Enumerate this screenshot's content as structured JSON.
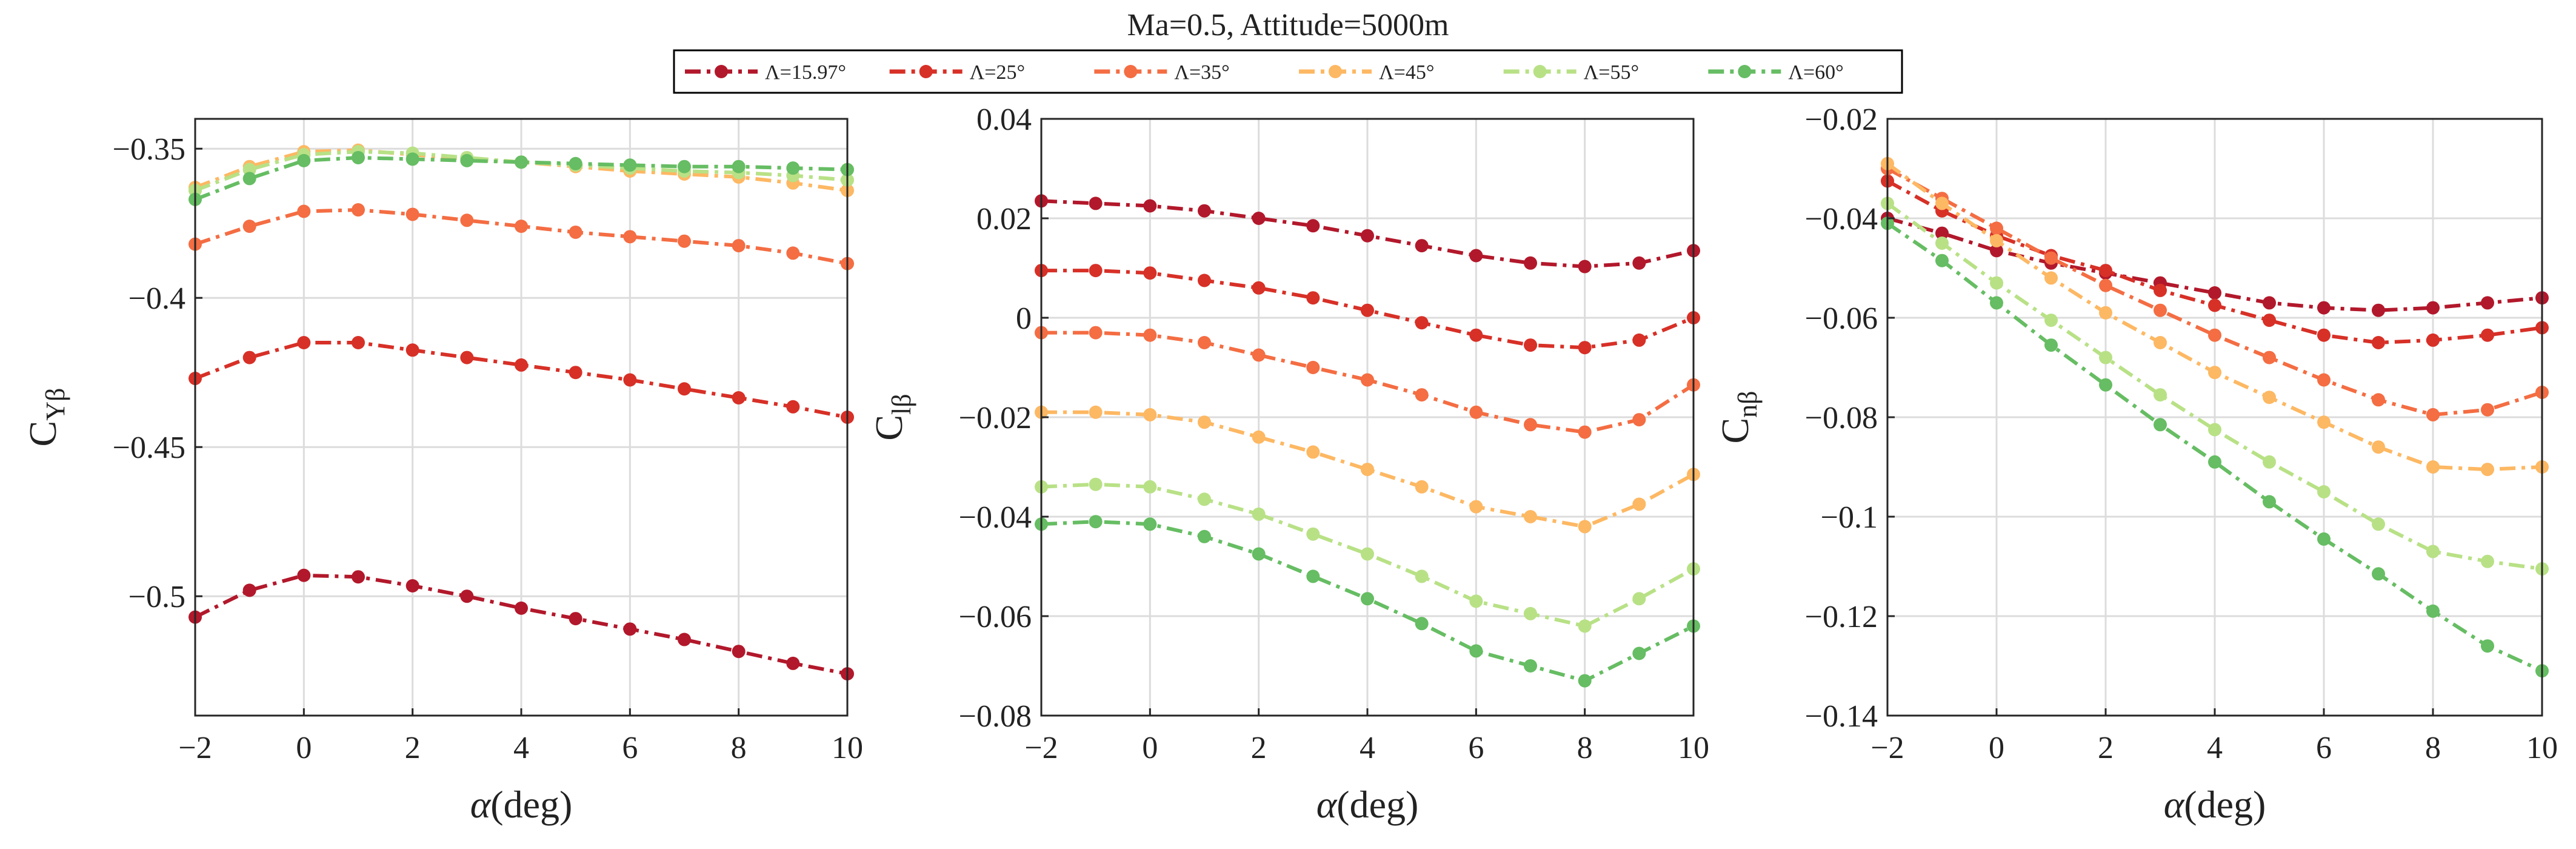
{
  "chart_data": {
    "type": "line",
    "title": "Ma=0.5, Attitude=5000m",
    "legend_position": "top",
    "series_legend": [
      {
        "name": "Λ=15.97°",
        "color": "#b2182b"
      },
      {
        "name": "Λ=25°",
        "color": "#d73027"
      },
      {
        "name": "Λ=35°",
        "color": "#f46d43"
      },
      {
        "name": "Λ=45°",
        "color": "#fdb863"
      },
      {
        "name": "Λ=55°",
        "color": "#b8e186"
      },
      {
        "name": "Λ=60°",
        "color": "#66bd63"
      }
    ],
    "x": [
      -2,
      -1,
      0,
      1,
      2,
      3,
      4,
      5,
      6,
      7,
      8,
      9,
      10
    ],
    "panels": [
      {
        "ylabel_main": "C",
        "ylabel_sub": "Yβ",
        "xlabel": "α(deg)",
        "xlim": [
          -2,
          10
        ],
        "ylim": [
          -0.54,
          -0.34
        ],
        "xticks": [
          "−2",
          "0",
          "2",
          "4",
          "6",
          "8",
          "10"
        ],
        "xtick_values": [
          -2,
          0,
          2,
          4,
          6,
          8,
          10
        ],
        "yticks": [
          "−0.5",
          "−0.45",
          "−0.4",
          "−0.35"
        ],
        "ytick_values": [
          -0.5,
          -0.45,
          -0.4,
          -0.35
        ],
        "series": [
          {
            "name": "Λ=15.97°",
            "values": [
              -0.507,
              -0.498,
              -0.493,
              -0.4935,
              -0.4965,
              -0.5,
              -0.504,
              -0.5075,
              -0.511,
              -0.5145,
              -0.5185,
              -0.5225,
              -0.526
            ]
          },
          {
            "name": "Λ=25°",
            "values": [
              -0.427,
              -0.42,
              -0.415,
              -0.415,
              -0.4175,
              -0.42,
              -0.4225,
              -0.425,
              -0.4275,
              -0.4305,
              -0.4335,
              -0.4365,
              -0.44
            ]
          },
          {
            "name": "Λ=35°",
            "values": [
              -0.382,
              -0.376,
              -0.371,
              -0.3705,
              -0.372,
              -0.374,
              -0.376,
              -0.378,
              -0.3795,
              -0.381,
              -0.3825,
              -0.385,
              -0.3885
            ]
          },
          {
            "name": "Λ=45°",
            "values": [
              -0.363,
              -0.356,
              -0.351,
              -0.3505,
              -0.352,
              -0.3535,
              -0.3545,
              -0.356,
              -0.3575,
              -0.3585,
              -0.3595,
              -0.3615,
              -0.364
            ]
          },
          {
            "name": "Λ=55°",
            "values": [
              -0.364,
              -0.357,
              -0.352,
              -0.351,
              -0.3515,
              -0.353,
              -0.3545,
              -0.3555,
              -0.3565,
              -0.3575,
              -0.358,
              -0.359,
              -0.3605
            ]
          },
          {
            "name": "Λ=60°",
            "values": [
              -0.367,
              -0.36,
              -0.354,
              -0.353,
              -0.3535,
              -0.354,
              -0.3545,
              -0.355,
              -0.3555,
              -0.356,
              -0.356,
              -0.3565,
              -0.357
            ]
          }
        ]
      },
      {
        "ylabel_main": "C",
        "ylabel_sub": "lβ",
        "xlabel": "α(deg)",
        "xlim": [
          -2,
          10
        ],
        "ylim": [
          -0.08,
          0.04
        ],
        "xticks": [
          "−2",
          "0",
          "2",
          "4",
          "6",
          "8",
          "10"
        ],
        "xtick_values": [
          -2,
          0,
          2,
          4,
          6,
          8,
          10
        ],
        "yticks": [
          "−0.08",
          "−0.06",
          "−0.04",
          "−0.02",
          "0",
          "0.02",
          "0.04"
        ],
        "ytick_values": [
          -0.08,
          -0.06,
          -0.04,
          -0.02,
          0,
          0.02,
          0.04
        ],
        "series": [
          {
            "name": "Λ=15.97°",
            "values": [
              0.0235,
              0.023,
              0.0225,
              0.0215,
              0.02,
              0.0185,
              0.0165,
              0.0145,
              0.0125,
              0.011,
              0.0103,
              0.011,
              0.0135
            ]
          },
          {
            "name": "Λ=25°",
            "values": [
              0.0095,
              0.0095,
              0.009,
              0.0075,
              0.006,
              0.004,
              0.0015,
              -0.001,
              -0.0035,
              -0.0055,
              -0.006,
              -0.0045,
              0.0
            ]
          },
          {
            "name": "Λ=35°",
            "values": [
              -0.003,
              -0.003,
              -0.0035,
              -0.005,
              -0.0075,
              -0.01,
              -0.0125,
              -0.0155,
              -0.019,
              -0.0215,
              -0.023,
              -0.0205,
              -0.0135
            ]
          },
          {
            "name": "Λ=45°",
            "values": [
              -0.019,
              -0.019,
              -0.0195,
              -0.021,
              -0.024,
              -0.027,
              -0.0305,
              -0.034,
              -0.038,
              -0.04,
              -0.042,
              -0.0375,
              -0.0315
            ]
          },
          {
            "name": "Λ=55°",
            "values": [
              -0.034,
              -0.0335,
              -0.034,
              -0.0365,
              -0.0395,
              -0.0435,
              -0.0475,
              -0.052,
              -0.057,
              -0.0595,
              -0.062,
              -0.0565,
              -0.0505
            ]
          },
          {
            "name": "Λ=60°",
            "values": [
              -0.0415,
              -0.041,
              -0.0415,
              -0.044,
              -0.0475,
              -0.052,
              -0.0565,
              -0.0615,
              -0.067,
              -0.07,
              -0.073,
              -0.0675,
              -0.062
            ]
          }
        ]
      },
      {
        "ylabel_main": "C",
        "ylabel_sub": "nβ",
        "xlabel": "α(deg)",
        "xlim": [
          -2,
          10
        ],
        "ylim": [
          -0.14,
          -0.02
        ],
        "xticks": [
          "−2",
          "0",
          "2",
          "4",
          "6",
          "8",
          "10"
        ],
        "xtick_values": [
          -2,
          0,
          2,
          4,
          6,
          8,
          10
        ],
        "yticks": [
          "−0.14",
          "−0.12",
          "−0.1",
          "−0.08",
          "−0.06",
          "−0.04",
          "−0.02"
        ],
        "ytick_values": [
          -0.14,
          -0.12,
          -0.1,
          -0.08,
          -0.06,
          -0.04,
          -0.02
        ],
        "series": [
          {
            "name": "Λ=15.97°",
            "values": [
              -0.04,
              -0.043,
              -0.0465,
              -0.049,
              -0.051,
              -0.053,
              -0.055,
              -0.057,
              -0.058,
              -0.0585,
              -0.058,
              -0.057,
              -0.056
            ]
          },
          {
            "name": "Λ=25°",
            "values": [
              -0.0325,
              -0.0385,
              -0.0435,
              -0.0475,
              -0.0505,
              -0.0545,
              -0.0575,
              -0.0605,
              -0.0635,
              -0.065,
              -0.0645,
              -0.0635,
              -0.062
            ]
          },
          {
            "name": "Λ=35°",
            "values": [
              -0.03,
              -0.036,
              -0.042,
              -0.048,
              -0.0535,
              -0.0585,
              -0.0635,
              -0.068,
              -0.0725,
              -0.0765,
              -0.0795,
              -0.0785,
              -0.075
            ]
          },
          {
            "name": "Λ=45°",
            "values": [
              -0.029,
              -0.037,
              -0.0445,
              -0.052,
              -0.059,
              -0.065,
              -0.071,
              -0.076,
              -0.081,
              -0.086,
              -0.09,
              -0.0905,
              -0.09
            ]
          },
          {
            "name": "Λ=55°",
            "values": [
              -0.037,
              -0.045,
              -0.053,
              -0.0605,
              -0.068,
              -0.0755,
              -0.0825,
              -0.089,
              -0.095,
              -0.1015,
              -0.107,
              -0.109,
              -0.1105
            ]
          },
          {
            "name": "Λ=60°",
            "values": [
              -0.041,
              -0.0485,
              -0.057,
              -0.0655,
              -0.0735,
              -0.0815,
              -0.089,
              -0.097,
              -0.1045,
              -0.1115,
              -0.119,
              -0.126,
              -0.131
            ]
          }
        ]
      }
    ]
  }
}
